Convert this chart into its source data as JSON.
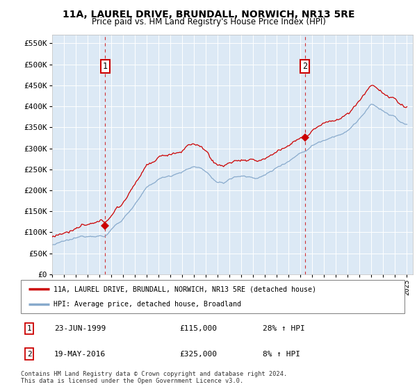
{
  "title": "11A, LAUREL DRIVE, BRUNDALL, NORWICH, NR13 5RE",
  "subtitle": "Price paid vs. HM Land Registry's House Price Index (HPI)",
  "ylim": [
    0,
    570000
  ],
  "yticks": [
    0,
    50000,
    100000,
    150000,
    200000,
    250000,
    300000,
    350000,
    400000,
    450000,
    500000,
    550000
  ],
  "ytick_labels": [
    "£0",
    "£50K",
    "£100K",
    "£150K",
    "£200K",
    "£250K",
    "£300K",
    "£350K",
    "£400K",
    "£450K",
    "£500K",
    "£550K"
  ],
  "plot_bg_color": "#dce9f5",
  "line_color_red": "#cc0000",
  "line_color_blue": "#88aacc",
  "transaction1_x": 1999.47,
  "transaction1_y": 115000,
  "transaction2_x": 2016.38,
  "transaction2_y": 325000,
  "legend_label_red": "11A, LAUREL DRIVE, BRUNDALL, NORWICH, NR13 5RE (detached house)",
  "legend_label_blue": "HPI: Average price, detached house, Broadland",
  "annotation1_label": "1",
  "annotation1_date": "23-JUN-1999",
  "annotation1_price": "£115,000",
  "annotation1_hpi": "28% ↑ HPI",
  "annotation2_label": "2",
  "annotation2_date": "19-MAY-2016",
  "annotation2_price": "£325,000",
  "annotation2_hpi": "8% ↑ HPI",
  "footer": "Contains HM Land Registry data © Crown copyright and database right 2024.\nThis data is licensed under the Open Government Licence v3.0.",
  "xmin": 1995.0,
  "xmax": 2025.5
}
